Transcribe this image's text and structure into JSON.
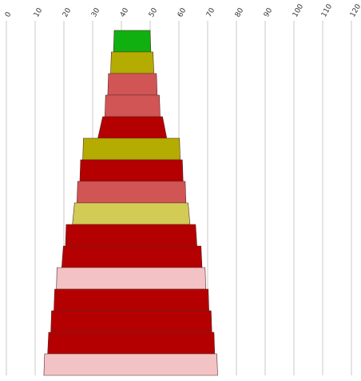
{
  "chart_data": {
    "type": "funnel",
    "x_axis": {
      "min": 0,
      "max": 120,
      "ticks": [
        "0",
        "10",
        "20",
        "30",
        "40",
        "50",
        "60",
        "70",
        "80",
        "90",
        "100",
        "110",
        "120"
      ],
      "tick_label_rotation": "-60deg",
      "grid": true,
      "position": "top"
    },
    "levels": [
      {
        "from": 37.5,
        "to": 50.0,
        "color": "#10b010"
      },
      {
        "from": 36.5,
        "to": 51.0,
        "color": "#b4ac00"
      },
      {
        "from": 35.5,
        "to": 52.2,
        "color": "#d15555"
      },
      {
        "from": 34.5,
        "to": 53.2,
        "color": "#d15555"
      },
      {
        "from": 33.5,
        "to": 54.3,
        "color": "#b40000"
      },
      {
        "from": 26.8,
        "to": 60.2,
        "color": "#b4ac00"
      },
      {
        "from": 25.8,
        "to": 61.2,
        "color": "#b40000"
      },
      {
        "from": 24.8,
        "to": 62.2,
        "color": "#d15555"
      },
      {
        "from": 23.7,
        "to": 63.2,
        "color": "#d2cb55"
      },
      {
        "from": 20.8,
        "to": 65.8,
        "color": "#b40000"
      },
      {
        "from": 19.8,
        "to": 67.7,
        "color": "#b40000"
      },
      {
        "from": 17.6,
        "to": 69.1,
        "color": "#f2c2c4"
      },
      {
        "from": 16.8,
        "to": 70.2,
        "color": "#b40000"
      },
      {
        "from": 15.7,
        "to": 71.2,
        "color": "#b40000"
      },
      {
        "from": 14.7,
        "to": 72.2,
        "color": "#b40000"
      },
      {
        "from": 13.3,
        "to": 73.2,
        "color": "#f2c2c4"
      }
    ]
  }
}
